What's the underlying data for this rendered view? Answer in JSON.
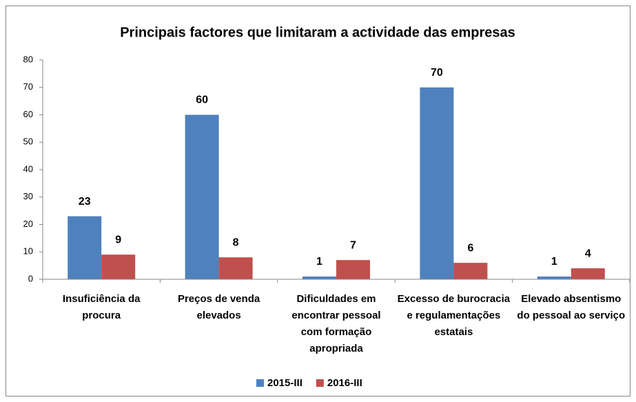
{
  "chart_data": {
    "type": "bar",
    "title": "Principais factores que limitaram a actividade das empresas",
    "categories": [
      "Insuficiência da procura",
      "Preços de venda elevados",
      "Dificuldades em encontrar pessoal com formação apropriada",
      "Excesso de burocracia e regulamentações estatais",
      "Elevado absentismo do pessoal ao serviço"
    ],
    "series": [
      {
        "name": "2015-III",
        "color": "#4f81bd",
        "values": [
          23,
          60,
          1,
          70,
          1
        ]
      },
      {
        "name": "2016-III",
        "color": "#c0504d",
        "values": [
          9,
          8,
          7,
          6,
          4
        ]
      }
    ],
    "ylim": [
      0,
      80
    ],
    "yticks": [
      0,
      10,
      20,
      30,
      40,
      50,
      60,
      70,
      80
    ],
    "grid": false,
    "legend": "bottom"
  }
}
